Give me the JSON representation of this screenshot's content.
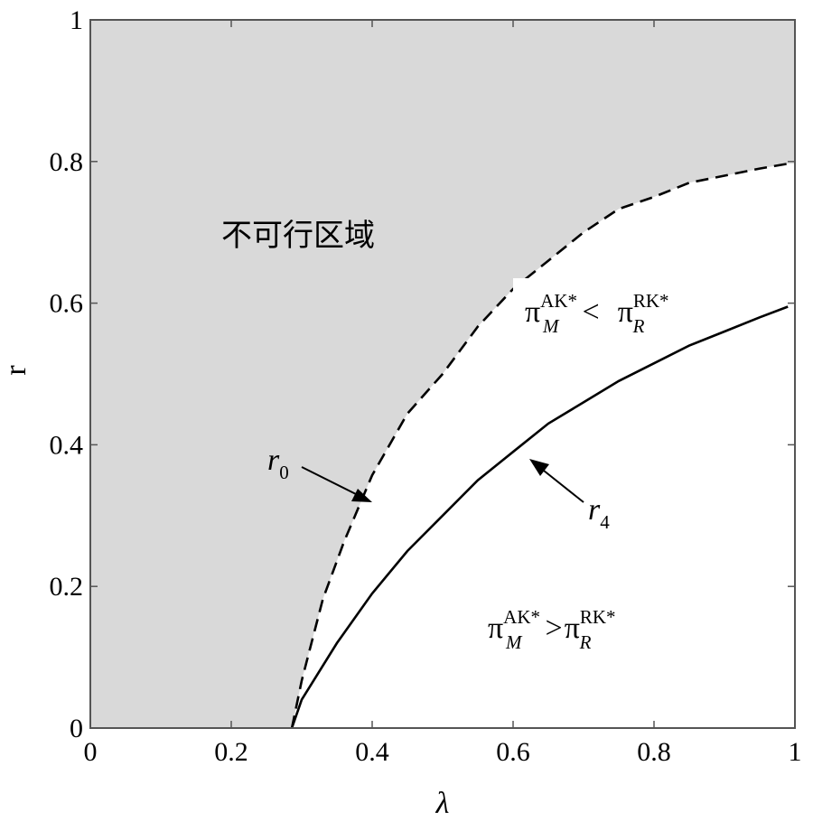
{
  "chart_data": {
    "type": "area",
    "xlabel": "λ",
    "ylabel": "r",
    "xlim": [
      0,
      1
    ],
    "ylim": [
      0,
      1
    ],
    "xticks": [
      "0",
      "0.2",
      "0.4",
      "0.6",
      "0.8",
      "1"
    ],
    "yticks": [
      "0",
      "0.2",
      "0.4",
      "0.6",
      "0.8",
      "1"
    ],
    "grid": false,
    "legend": "none",
    "series": [
      {
        "name": "r0",
        "style": "dashed",
        "x": [
          0.286,
          0.3,
          0.33,
          0.36,
          0.4,
          0.45,
          0.5,
          0.55,
          0.6,
          0.65,
          0.7,
          0.75,
          0.8,
          0.85,
          0.9,
          0.95,
          0.99
        ],
        "y": [
          0.0,
          0.067,
          0.182,
          0.263,
          0.357,
          0.444,
          0.5,
          0.567,
          0.62,
          0.66,
          0.7,
          0.733,
          0.75,
          0.77,
          0.78,
          0.79,
          0.797
        ]
      },
      {
        "name": "r4",
        "style": "solid",
        "x": [
          0.286,
          0.3,
          0.35,
          0.4,
          0.45,
          0.5,
          0.55,
          0.6,
          0.65,
          0.7,
          0.75,
          0.8,
          0.85,
          0.9,
          0.95,
          0.99
        ],
        "y": [
          0.0,
          0.04,
          0.12,
          0.19,
          0.25,
          0.3,
          0.35,
          0.39,
          0.43,
          0.46,
          0.49,
          0.515,
          0.54,
          0.56,
          0.58,
          0.595
        ]
      }
    ],
    "fill": {
      "region": "above r0",
      "color": "#d9d9d9"
    },
    "annotations": {
      "infeasible": "不可行区域",
      "upper_pi": "π",
      "upper_sub_left": "M",
      "upper_sup_left": "AK*",
      "upper_relation": "<",
      "upper_sub_right": "R",
      "upper_sup_right": "RK*",
      "lower_pi": "π",
      "lower_sub_left": "M",
      "lower_sup_left": "AK*",
      "lower_relation": ">",
      "lower_sub_right": "R",
      "lower_sup_right": "RK*",
      "r0_base": "r",
      "r0_sub": "0",
      "r4_base": "r",
      "r4_sub": "4"
    }
  }
}
